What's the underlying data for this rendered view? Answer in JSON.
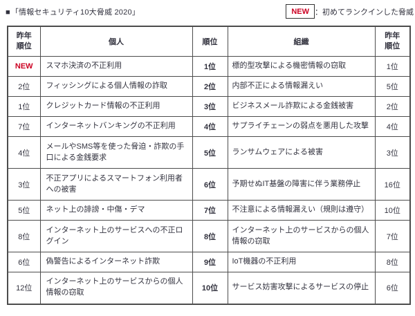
{
  "page": {
    "title_marker": "■",
    "title": "「情報セキュリティ10大脅威 2020」",
    "legend": {
      "badge": "NEW",
      "description": "：初めてランクインした脅威"
    }
  },
  "colors": {
    "accent_red": "#cc0022",
    "text": "#32323e",
    "border": "#4c4c4c",
    "background": "#ffffff"
  },
  "table": {
    "header": {
      "prev_rank_left_line1": "昨年",
      "prev_rank_left_line2": "順位",
      "individual": "個人",
      "rank": "順位",
      "organization": "組織",
      "prev_rank_right_line1": "昨年",
      "prev_rank_right_line2": "順位"
    },
    "rows": [
      {
        "prev_left": "NEW",
        "individual": "スマホ決済の不正利用",
        "rank": "1位",
        "organization": "標的型攻撃による機密情報の窃取",
        "prev_right": "1位"
      },
      {
        "prev_left": "2位",
        "individual": "フィッシングによる個人情報の詐取",
        "rank": "2位",
        "organization": "内部不正による情報漏えい",
        "prev_right": "5位"
      },
      {
        "prev_left": "1位",
        "individual": "クレジットカード情報の不正利用",
        "rank": "3位",
        "organization": "ビジネスメール詐欺による金銭被害",
        "prev_right": "2位"
      },
      {
        "prev_left": "7位",
        "individual": "インターネットバンキングの不正利用",
        "rank": "4位",
        "organization": "サプライチェーンの弱点を悪用した攻撃",
        "prev_right": "4位"
      },
      {
        "prev_left": "4位",
        "individual": "メールやSMS等を使った脅迫・詐欺の手口による金銭要求",
        "rank": "5位",
        "organization": "ランサムウェアによる被害",
        "prev_right": "3位"
      },
      {
        "prev_left": "3位",
        "individual": "不正アプリによるスマートフォン利用者への被害",
        "rank": "6位",
        "organization": "予期せぬIT基盤の障害に伴う業務停止",
        "prev_right": "16位"
      },
      {
        "prev_left": "5位",
        "individual": "ネット上の誹謗・中傷・デマ",
        "rank": "7位",
        "organization": "不注意による情報漏えい（規則は遵守）",
        "prev_right": "10位"
      },
      {
        "prev_left": "8位",
        "individual": "インターネット上のサービスへの不正ログイン",
        "rank": "8位",
        "organization": "インターネット上のサービスからの個人情報の窃取",
        "prev_right": "7位"
      },
      {
        "prev_left": "6位",
        "individual": "偽警告によるインターネット詐欺",
        "rank": "9位",
        "organization": "IoT機器の不正利用",
        "prev_right": "8位"
      },
      {
        "prev_left": "12位",
        "individual": "インターネット上のサービスからの個人情報の窃取",
        "rank": "10位",
        "organization": "サービス妨害攻撃によるサービスの停止",
        "prev_right": "6位"
      }
    ]
  }
}
